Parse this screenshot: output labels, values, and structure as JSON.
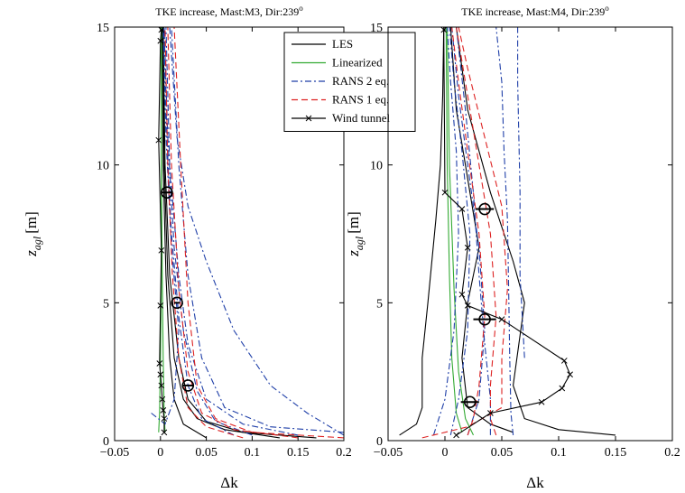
{
  "chart_data": [
    {
      "type": "line",
      "title": "TKE increase, Mast:M3, Dir:239",
      "title_sup": "o",
      "xlabel": "Δk",
      "ylabel": "z",
      "ylabel_sub": "agl",
      "ylabel_unit": "[m]",
      "xlim": [
        -0.05,
        0.2
      ],
      "ylim": [
        0,
        15
      ],
      "xticks": [
        "−0.05",
        "0",
        "0.05",
        "0.1",
        "0.15",
        "0.2"
      ],
      "yticks": [
        "0",
        "5",
        "10",
        "15"
      ],
      "grid": false,
      "series": [
        {
          "role": "LES",
          "color": "#000000",
          "dash": "solid",
          "x": [
            0.13,
            0.07,
            0.04,
            0.025,
            0.015,
            0.008,
            0.004,
            0.002
          ],
          "y": [
            0.1,
            0.4,
            0.8,
            1.5,
            3,
            6,
            10,
            15
          ]
        },
        {
          "role": "LES",
          "color": "#000000",
          "dash": "solid",
          "x": [
            0.17,
            0.09,
            0.05,
            0.03,
            0.02,
            0.01,
            0.005,
            0.003
          ],
          "y": [
            0.1,
            0.3,
            0.7,
            1.5,
            3,
            6,
            10,
            15
          ]
        },
        {
          "role": "LES",
          "color": "#000000",
          "dash": "solid",
          "x": [
            0.05,
            0.025,
            0.015,
            0.01,
            0.006,
            0.003,
            0.002
          ],
          "y": [
            0.1,
            0.6,
            1.5,
            3,
            6,
            10,
            15
          ]
        },
        {
          "role": "Linearized",
          "color": "#33aa33",
          "dash": "solid",
          "x": [
            -0.002,
            -0.001,
            0,
            0.001,
            0.001,
            0.001
          ],
          "y": [
            0.3,
            1,
            3,
            6,
            10,
            15
          ]
        },
        {
          "role": "Linearized",
          "color": "#33aa33",
          "dash": "solid",
          "x": [
            0.005,
            0.004,
            0.003,
            0.002,
            0.001,
            0.001
          ],
          "y": [
            0.3,
            1,
            3,
            6,
            10,
            15
          ]
        },
        {
          "role": "RANS 2 eq.",
          "color": "#1f3fa8",
          "dash": "dashdot",
          "x": [
            0.2,
            0.16,
            0.12,
            0.08,
            0.05,
            0.03,
            0.018,
            0.01
          ],
          "y": [
            0.2,
            1,
            2,
            4,
            6.5,
            8.5,
            11,
            15
          ]
        },
        {
          "role": "RANS 2 eq.",
          "color": "#1f3fa8",
          "dash": "dashdot",
          "x": [
            0.2,
            0.12,
            0.07,
            0.045,
            0.03,
            0.02,
            0.012
          ],
          "y": [
            0.3,
            0.5,
            1.2,
            3,
            6,
            10,
            15
          ]
        },
        {
          "role": "RANS 2 eq.",
          "color": "#1f3fa8",
          "dash": "dashdot",
          "x": [
            0.15,
            0.09,
            0.05,
            0.03,
            0.02,
            0.01,
            0.006
          ],
          "y": [
            0.2,
            0.6,
            1.5,
            3.5,
            6,
            10,
            15
          ]
        },
        {
          "role": "RANS 2 eq.",
          "color": "#1f3fa8",
          "dash": "dashdot",
          "x": [
            0.1,
            0.06,
            0.04,
            0.025,
            0.015,
            0.008,
            0.004
          ],
          "y": [
            0.2,
            0.7,
            1.8,
            4,
            7,
            11,
            15
          ]
        },
        {
          "role": "RANS 2 eq.",
          "color": "#1f3fa8",
          "dash": "dashdot",
          "x": [
            -0.01,
            0.005,
            0.015,
            0.02,
            0.012,
            0.006,
            0.003
          ],
          "y": [
            1,
            0.6,
            1.5,
            4,
            7,
            11,
            15
          ]
        },
        {
          "role": "RANS 2 eq.",
          "color": "#1f3fa8",
          "dash": "dashdot",
          "x": [
            0.08,
            0.045,
            0.03,
            0.02,
            0.012,
            0.007,
            0.004
          ],
          "y": [
            0.2,
            0.8,
            2,
            4.5,
            7.5,
            11,
            15
          ]
        },
        {
          "role": "RANS 1 eq.",
          "color": "#dd2222",
          "dash": "dashed",
          "x": [
            0.2,
            0.1,
            0.06,
            0.04,
            0.03,
            0.022,
            0.015
          ],
          "y": [
            0.1,
            0.3,
            0.8,
            2,
            5,
            10,
            15
          ]
        },
        {
          "role": "RANS 1 eq.",
          "color": "#dd2222",
          "dash": "dashed",
          "x": [
            0.15,
            0.08,
            0.045,
            0.03,
            0.02,
            0.012,
            0.008
          ],
          "y": [
            0.1,
            0.4,
            1,
            2.5,
            5.5,
            10,
            15
          ]
        },
        {
          "role": "RANS 1 eq.",
          "color": "#dd2222",
          "dash": "dashed",
          "x": [
            0.09,
            0.05,
            0.03,
            0.02,
            0.013,
            0.008,
            0.005
          ],
          "y": [
            0.1,
            0.5,
            1.2,
            3,
            6,
            10,
            15
          ]
        },
        {
          "role": "Wind tunnel",
          "color": "#000000",
          "dash": "solid",
          "marker": "x",
          "x": [
            0.004,
            0.004,
            0.003,
            0.002,
            0.001,
            0.0,
            -0.001,
            0.0,
            0.001,
            -0.002,
            0.0,
            0.001
          ],
          "y": [
            0.3,
            0.8,
            1.1,
            1.5,
            2.0,
            2.4,
            2.8,
            4.9,
            6.9,
            10.9,
            14.5,
            14.9
          ]
        }
      ],
      "error_markers": [
        {
          "x": 0.007,
          "y": 9.0,
          "xerr": 0.006
        },
        {
          "x": 0.018,
          "y": 5.0,
          "xerr": 0.003
        },
        {
          "x": 0.03,
          "y": 2.0,
          "xerr": 0.006
        }
      ],
      "legend": {
        "position": "top-right",
        "entries": [
          {
            "label": "LES",
            "color": "#000000",
            "dash": "solid"
          },
          {
            "label": "Linearized",
            "color": "#33aa33",
            "dash": "solid"
          },
          {
            "label": "RANS 2 eq.",
            "color": "#1f3fa8",
            "dash": "dashdot"
          },
          {
            "label": "RANS 1 eq.",
            "color": "#dd2222",
            "dash": "dashed"
          },
          {
            "label": "Wind tunnel",
            "color": "#000000",
            "dash": "solid",
            "marker": "x"
          }
        ]
      }
    },
    {
      "type": "line",
      "title": "TKE increase, Mast:M4, Dir:239",
      "title_sup": "o",
      "xlabel": "Δk",
      "ylabel": "z",
      "ylabel_sub": "agl",
      "ylabel_unit": "[m]",
      "xlim": [
        -0.05,
        0.2
      ],
      "ylim": [
        0,
        15
      ],
      "xticks": [
        "−0.05",
        "0",
        "0.05",
        "0.1",
        "0.15",
        "0.2"
      ],
      "yticks": [
        "0",
        "5",
        "10",
        "15"
      ],
      "grid": false,
      "series": [
        {
          "role": "LES",
          "color": "#000000",
          "dash": "solid",
          "x": [
            0.15,
            0.1,
            0.07,
            0.06,
            0.065,
            0.07,
            0.06,
            0.04,
            0.02,
            0.01
          ],
          "y": [
            0.2,
            0.4,
            0.8,
            2,
            3.5,
            5,
            6.5,
            9,
            12,
            15
          ]
        },
        {
          "role": "LES",
          "color": "#000000",
          "dash": "solid",
          "x": [
            -0.04,
            -0.025,
            -0.02,
            -0.02,
            -0.015,
            -0.008,
            -0.004,
            -0.002,
            -0.001
          ],
          "y": [
            0.2,
            0.6,
            1.2,
            3,
            5,
            8,
            10,
            12.5,
            15
          ]
        },
        {
          "role": "LES",
          "color": "#000000",
          "dash": "solid",
          "x": [
            0.06,
            0.04,
            0.02,
            0.015,
            0.02,
            0.03,
            0.02,
            0.01,
            0.005
          ],
          "y": [
            0.3,
            0.6,
            1.2,
            3,
            5,
            7,
            9.5,
            12,
            15
          ]
        },
        {
          "role": "Linearized",
          "color": "#33aa33",
          "dash": "solid",
          "x": [
            0.015,
            0.01,
            0.006,
            0.004,
            0.002,
            0.001
          ],
          "y": [
            0.3,
            1,
            3,
            6,
            10,
            15
          ]
        },
        {
          "role": "Linearized",
          "color": "#33aa33",
          "dash": "solid",
          "x": [
            0.025,
            0.018,
            0.012,
            0.008,
            0.004,
            0.002
          ],
          "y": [
            0.2,
            0.8,
            2.5,
            5.5,
            10,
            15
          ]
        },
        {
          "role": "RANS 2 eq.",
          "color": "#1f3fa8",
          "dash": "dashdot",
          "x": [
            0.06,
            0.058,
            0.057,
            0.056,
            0.055,
            0.052,
            0.05,
            0.045
          ],
          "y": [
            0.2,
            1,
            3,
            5.5,
            8,
            10.5,
            13,
            15
          ]
        },
        {
          "role": "RANS 2 eq.",
          "color": "#1f3fa8",
          "dash": "dashdot",
          "x": [
            0.04,
            0.04,
            0.035,
            0.03,
            0.025,
            0.018,
            0.01
          ],
          "y": [
            0.2,
            1.5,
            3.5,
            6,
            9,
            12,
            15
          ]
        },
        {
          "role": "RANS 2 eq.",
          "color": "#1f3fa8",
          "dash": "dashdot",
          "x": [
            0.02,
            0.03,
            0.035,
            0.03,
            0.02,
            0.012,
            0.006
          ],
          "y": [
            0.2,
            1.5,
            4,
            7,
            10,
            12.5,
            15
          ]
        },
        {
          "role": "RANS 2 eq.",
          "color": "#1f3fa8",
          "dash": "dashdot",
          "x": [
            0.005,
            0.012,
            0.02,
            0.022,
            0.015,
            0.008,
            0.004
          ],
          "y": [
            0.2,
            1.5,
            4,
            7.5,
            10.5,
            13,
            15
          ]
        },
        {
          "role": "RANS 2 eq.",
          "color": "#1f3fa8",
          "dash": "dashdot",
          "x": [
            -0.01,
            0.0,
            0.008,
            0.012,
            0.01,
            0.005,
            0.002
          ],
          "y": [
            0.2,
            1.5,
            4,
            7.5,
            10.5,
            13,
            15
          ]
        },
        {
          "role": "RANS 2 eq.",
          "color": "#1f3fa8",
          "dash": "dashdot",
          "x": [
            0.07,
            0.066,
            0.066,
            0.065,
            0.064,
            0.064
          ],
          "y": [
            3,
            6,
            9,
            11,
            13,
            15
          ]
        },
        {
          "role": "RANS 1 eq.",
          "color": "#dd2222",
          "dash": "dashed",
          "x": [
            -0.02,
            0.02,
            0.05,
            0.05,
            0.055,
            0.05,
            0.035,
            0.02,
            0.012
          ],
          "y": [
            0.1,
            0.5,
            1.2,
            3,
            5.5,
            8.5,
            11,
            13.5,
            15
          ]
        },
        {
          "role": "RANS 1 eq.",
          "color": "#dd2222",
          "dash": "dashed",
          "x": [
            0.02,
            0.025,
            0.03,
            0.035,
            0.03,
            0.02,
            0.012,
            0.006
          ],
          "y": [
            0.2,
            0.8,
            2,
            4.5,
            7.5,
            10.5,
            13,
            15
          ]
        },
        {
          "role": "RANS 1 eq.",
          "color": "#dd2222",
          "dash": "dashed",
          "x": [
            0.045,
            0.04,
            0.04,
            0.045,
            0.04,
            0.028,
            0.018,
            0.01
          ],
          "y": [
            0.2,
            0.8,
            2,
            4.5,
            7.5,
            10.5,
            13,
            15
          ]
        },
        {
          "role": "Wind tunnel",
          "color": "#000000",
          "dash": "solid",
          "marker": "x",
          "x": [
            0.01,
            0.04,
            0.085,
            0.103,
            0.11,
            0.105,
            0.05,
            0.02,
            0.015,
            0.02,
            0.015,
            0.0,
            -0.001
          ],
          "y": [
            0.2,
            1.0,
            1.4,
            1.9,
            2.4,
            2.9,
            4.4,
            4.9,
            5.3,
            7.0,
            8.4,
            9.0,
            14.9
          ]
        }
      ],
      "error_markers": [
        {
          "x": 0.035,
          "y": 8.4,
          "xerr": 0.008
        },
        {
          "x": 0.035,
          "y": 4.4,
          "xerr": 0.01
        },
        {
          "x": 0.022,
          "y": 1.4,
          "xerr": 0.008
        }
      ]
    }
  ]
}
